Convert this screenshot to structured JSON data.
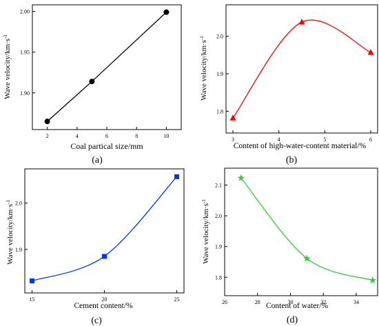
{
  "chart_data": [
    {
      "id": "a",
      "panel_label": "(a)",
      "type": "line",
      "xlabel": "Coal partical size/mm",
      "ylabel": "Wave velocity/km·s",
      "ylabel_sup": "-1",
      "xlim": [
        1,
        11
      ],
      "ylim": [
        1.855,
        2.008
      ],
      "xticks": [
        2,
        4,
        6,
        8,
        10
      ],
      "yticks": [
        1.9,
        1.95,
        2.0
      ],
      "xtick_labels": [
        "2",
        "4",
        "6",
        "8",
        "10"
      ],
      "ytick_labels": [
        "1.90",
        "1.95",
        "2.00"
      ],
      "series": [
        {
          "x": [
            2,
            5,
            10
          ],
          "y": [
            1.865,
            1.914,
            1.999
          ],
          "marker": "circle",
          "color": "#000000",
          "curve": "straight"
        }
      ]
    },
    {
      "id": "b",
      "panel_label": "(b)",
      "type": "line",
      "xlabel": "Content of high-water-content material/%",
      "ylabel": "Wave velocity/km·s",
      "ylabel_sup": "-1",
      "xlim": [
        2.85,
        6.15
      ],
      "ylim": [
        1.742,
        2.084
      ],
      "xticks": [
        3,
        4,
        5,
        6
      ],
      "yticks": [
        1.8,
        1.9,
        2.0
      ],
      "xtick_labels": [
        "3",
        "4",
        "5",
        "6"
      ],
      "ytick_labels": [
        "1.8",
        "1.9",
        "2.0"
      ],
      "series": [
        {
          "x": [
            3,
            4.5,
            6
          ],
          "y": [
            1.782,
            2.038,
            1.957
          ],
          "marker": "triangle",
          "color": "#ff0000",
          "curve": "smooth"
        }
      ]
    },
    {
      "id": "c",
      "panel_label": "(c)",
      "type": "line",
      "xlabel": "Cement content/%",
      "ylabel": "Wave velocity/km·s",
      "ylabel_sup": "-1",
      "xlim": [
        14.5,
        25.5
      ],
      "ylim": [
        1.806,
        2.074
      ],
      "xticks": [
        15,
        20,
        25
      ],
      "yticks": [
        1.9,
        2.0
      ],
      "xtick_labels": [
        "15",
        "20",
        "25"
      ],
      "ytick_labels": [
        "1.9",
        "2.0"
      ],
      "series": [
        {
          "x": [
            15,
            20,
            25
          ],
          "y": [
            1.832,
            1.885,
            2.057
          ],
          "marker": "square",
          "color": "#0033ff",
          "curve": "smooth"
        }
      ]
    },
    {
      "id": "d",
      "panel_label": "(d)",
      "type": "line",
      "xlabel": "Content of water/%",
      "ylabel": "Wave velocity/km·s",
      "ylabel_sup": "-1",
      "xlim": [
        26,
        35.3
      ],
      "ylim": [
        1.74,
        2.155
      ],
      "xticks": [
        26,
        28,
        30,
        32,
        34
      ],
      "yticks": [
        1.8,
        1.9,
        2.0,
        2.1
      ],
      "xtick_labels": [
        "26",
        "28",
        "30",
        "32",
        "34"
      ],
      "ytick_labels": [
        "1.8",
        "1.9",
        "2.0",
        "2.1"
      ],
      "series": [
        {
          "x": [
            27,
            31,
            35
          ],
          "y": [
            2.123,
            1.861,
            1.79
          ],
          "marker": "star",
          "color": "#33cc33",
          "curve": "smooth"
        }
      ]
    }
  ]
}
